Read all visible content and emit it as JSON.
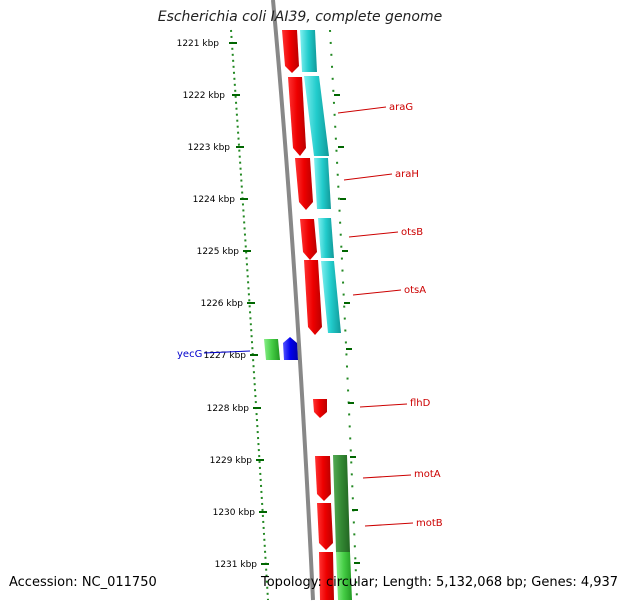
{
  "title": "Escherichia coli IAI39, complete genome",
  "accession": "Accession: NC_011750",
  "topology": "Topology: circular; Length: 5,132,068 bp; Genes: 4,937",
  "ruler": {
    "unit": "kbp",
    "ticks": [
      "1221 kbp",
      "1222 kbp",
      "1223 kbp",
      "1224 kbp",
      "1225 kbp",
      "1226 kbp",
      "1227 kbp",
      "1228 kbp",
      "1229 kbp",
      "1230 kbp",
      "1231 kbp"
    ]
  },
  "genes": [
    {
      "name": "araG",
      "color": "#cc0000"
    },
    {
      "name": "araH",
      "color": "#cc0000"
    },
    {
      "name": "otsB",
      "color": "#cc0000"
    },
    {
      "name": "otsA",
      "color": "#cc0000"
    },
    {
      "name": "yecG",
      "color": "#0000cc"
    },
    {
      "name": "flhD",
      "color": "#cc0000"
    },
    {
      "name": "motA",
      "color": "#cc0000"
    },
    {
      "name": "motB",
      "color": "#cc0000"
    }
  ],
  "colors": {
    "cds": "#ee0000",
    "gene_cyan": "#22cccc",
    "gene_green_dark": "#338833",
    "gene_green_light": "#44cc44",
    "rna_blue": "#0000ee",
    "backbone": "#888888",
    "ticks": "#006600"
  }
}
